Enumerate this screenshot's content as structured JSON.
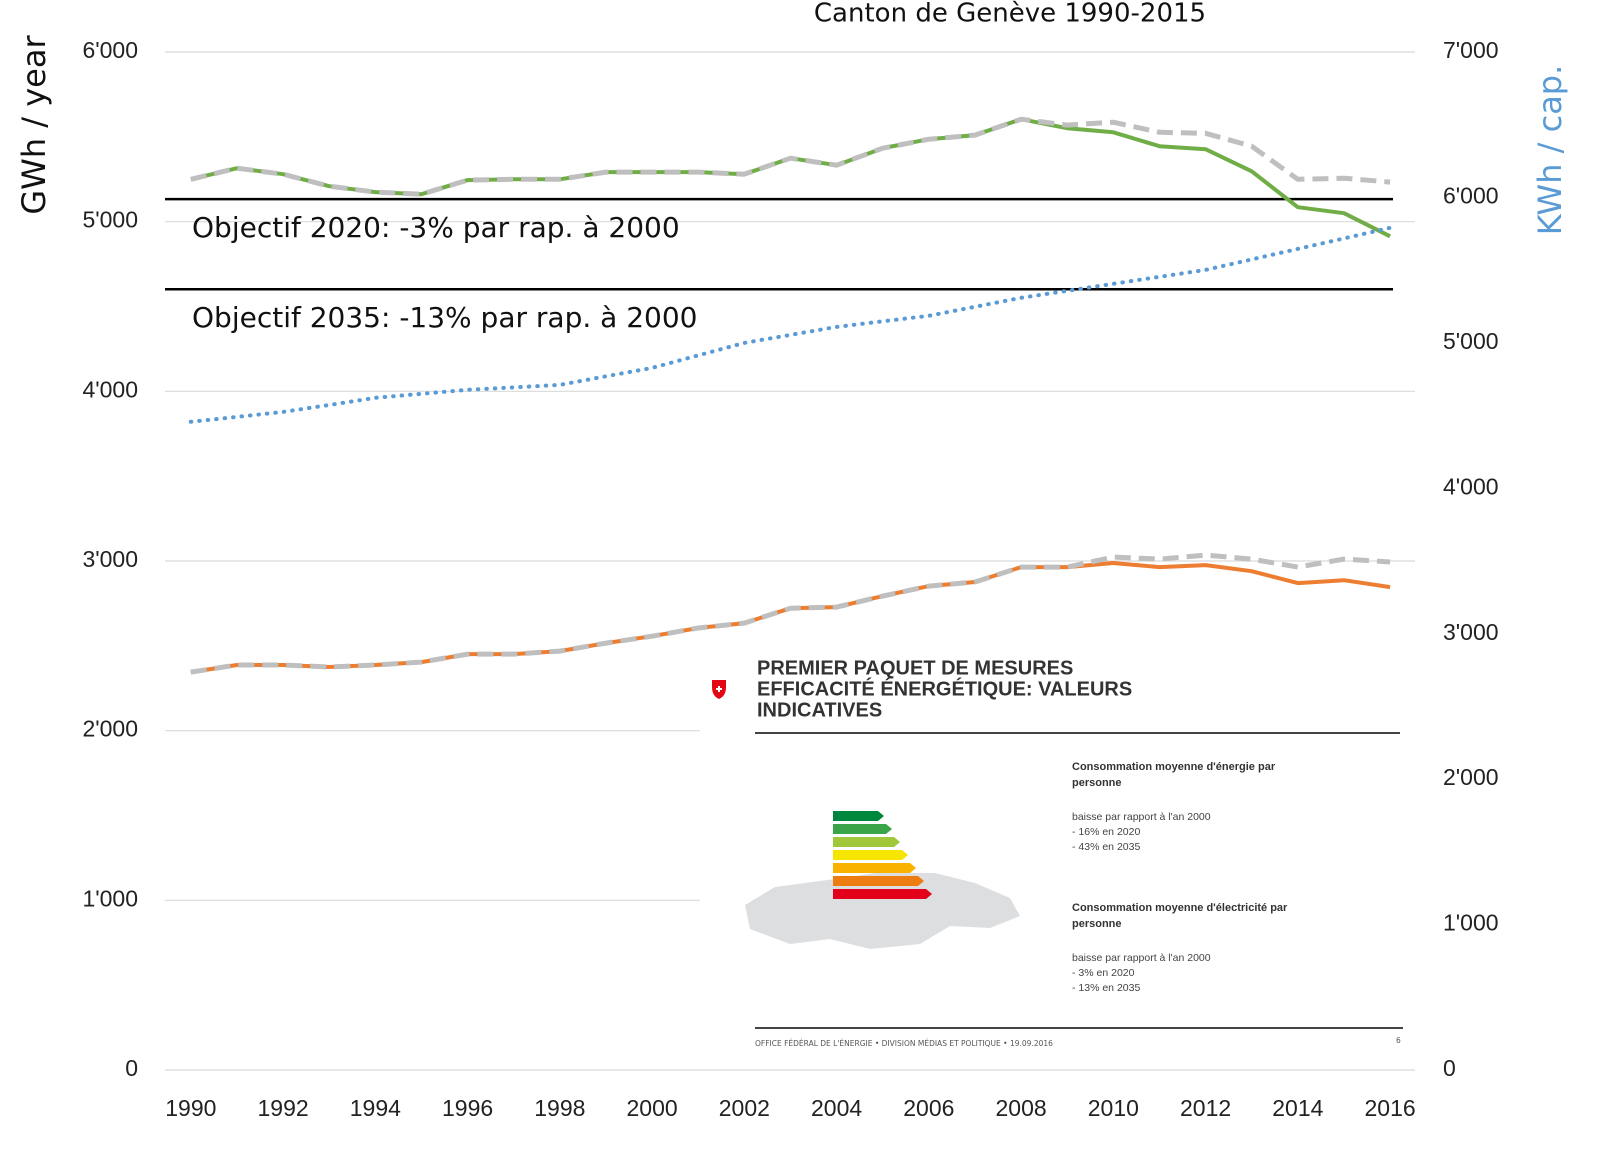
{
  "chart_data": {
    "type": "line",
    "title": "Canton de Genève 1990-2015",
    "ylabel": "GWh / year",
    "y2label": "KWh / cap.",
    "x": [
      1990,
      1991,
      1992,
      1993,
      1994,
      1995,
      1996,
      1997,
      1998,
      1999,
      2000,
      2001,
      2002,
      2003,
      2004,
      2005,
      2006,
      2007,
      2008,
      2009,
      2010,
      2011,
      2012,
      2013,
      2014,
      2015,
      2016
    ],
    "xlim": [
      1989.44,
      2016.54
    ],
    "xticks": [
      1990,
      1992,
      1994,
      1996,
      1998,
      2000,
      2002,
      2004,
      2006,
      2008,
      2010,
      2012,
      2014,
      2016
    ],
    "ylim": [
      0,
      6000
    ],
    "yticks": [
      {
        "value": 0,
        "label": "0"
      },
      {
        "value": 1000,
        "label": "1'000"
      },
      {
        "value": 2000,
        "label": "2'000"
      },
      {
        "value": 3000,
        "label": "3'000"
      },
      {
        "value": 4000,
        "label": "4'000"
      },
      {
        "value": 5000,
        "label": "5'000"
      },
      {
        "value": 6000,
        "label": "6'000"
      }
    ],
    "y2lim": [
      0,
      7000
    ],
    "y2ticks": [
      {
        "value": 0,
        "label": "0"
      },
      {
        "value": 1000,
        "label": "1'000"
      },
      {
        "value": 2000,
        "label": "2'000"
      },
      {
        "value": 3000,
        "label": "3'000"
      },
      {
        "value": 4000,
        "label": "4'000"
      },
      {
        "value": 5000,
        "label": "5'000"
      },
      {
        "value": 6000,
        "label": "6'000"
      },
      {
        "value": 7000,
        "label": "7'000"
      }
    ],
    "grid": true,
    "series": [
      {
        "color": "#70ad47",
        "style": "solid",
        "values": [
          5250,
          5315,
          5280,
          5209,
          5174,
          5162,
          5245,
          5250,
          5250,
          5292,
          5292,
          5292,
          5280,
          5374,
          5333,
          5433,
          5486,
          5510,
          5604,
          5551,
          5527,
          5445,
          5427,
          5297,
          5085,
          5050,
          4914
        ]
      },
      {
        "color": "#ed7d31",
        "style": "solid",
        "values": [
          2345,
          2387,
          2387,
          2375,
          2387,
          2404,
          2451,
          2451,
          2469,
          2516,
          2557,
          2605,
          2634,
          2722,
          2728,
          2793,
          2852,
          2876,
          2964,
          2964,
          2988,
          2964,
          2976,
          2940,
          2870,
          2887,
          2846
        ]
      },
      {
        "color": "#bfbfbf",
        "style": "dashed",
        "values": [
          5250,
          5315,
          5280,
          5209,
          5174,
          5162,
          5245,
          5250,
          5250,
          5292,
          5292,
          5292,
          5280,
          5374,
          5333,
          5433,
          5486,
          5510,
          5604,
          5569,
          5586,
          5527,
          5521,
          5445,
          5250,
          5256,
          5233
        ]
      },
      {
        "color": "#bfbfbf",
        "style": "dashed",
        "values": [
          2345,
          2387,
          2387,
          2375,
          2387,
          2404,
          2451,
          2451,
          2469,
          2516,
          2557,
          2605,
          2634,
          2722,
          2728,
          2793,
          2852,
          2876,
          2964,
          2964,
          3023,
          3011,
          3035,
          3011,
          2964,
          3011,
          2994
        ]
      },
      {
        "color": "#5b9bd5",
        "style": "dotted",
        "axis": "y2",
        "values": [
          4457,
          4491,
          4525,
          4573,
          4622,
          4650,
          4677,
          4694,
          4711,
          4770,
          4828,
          4914,
          5000,
          5055,
          5110,
          5148,
          5186,
          5248,
          5310,
          5358,
          5406,
          5454,
          5502,
          5574,
          5646,
          5718,
          5791
        ]
      }
    ],
    "reference_lines": [
      {
        "value": 5133,
        "label": "Objectif 2020: -3% par rap. à 2000"
      },
      {
        "value": 4602,
        "label": "Objectif 2035: -13% par rap. à 2000"
      }
    ]
  },
  "inset": {
    "heading": [
      "PREMIER PAQUET DE MESURES",
      "EFFICACITÉ ÉNERGÉTIQUE: VALEURS",
      "INDICATIVES"
    ],
    "blocks": [
      {
        "title": [
          "Consommation moyenne d'énergie par",
          "personne"
        ],
        "lines": [
          "baisse par rapport à l'an 2000",
          "- 16% en 2020",
          "- 43% en 2035"
        ]
      },
      {
        "title": [
          "Consommation moyenne d'électricité par",
          "personne"
        ],
        "lines": [
          "baisse par rapport à l'an 2000",
          "-   3% en 2020",
          "- 13% en 2035"
        ]
      }
    ],
    "footer": "OFFICE FÉDÉRAL DE L'ÉNERGIE  •  DIVISION MÉDIAS ET POLITIQUE  •  19.09.2016",
    "page": "6"
  }
}
